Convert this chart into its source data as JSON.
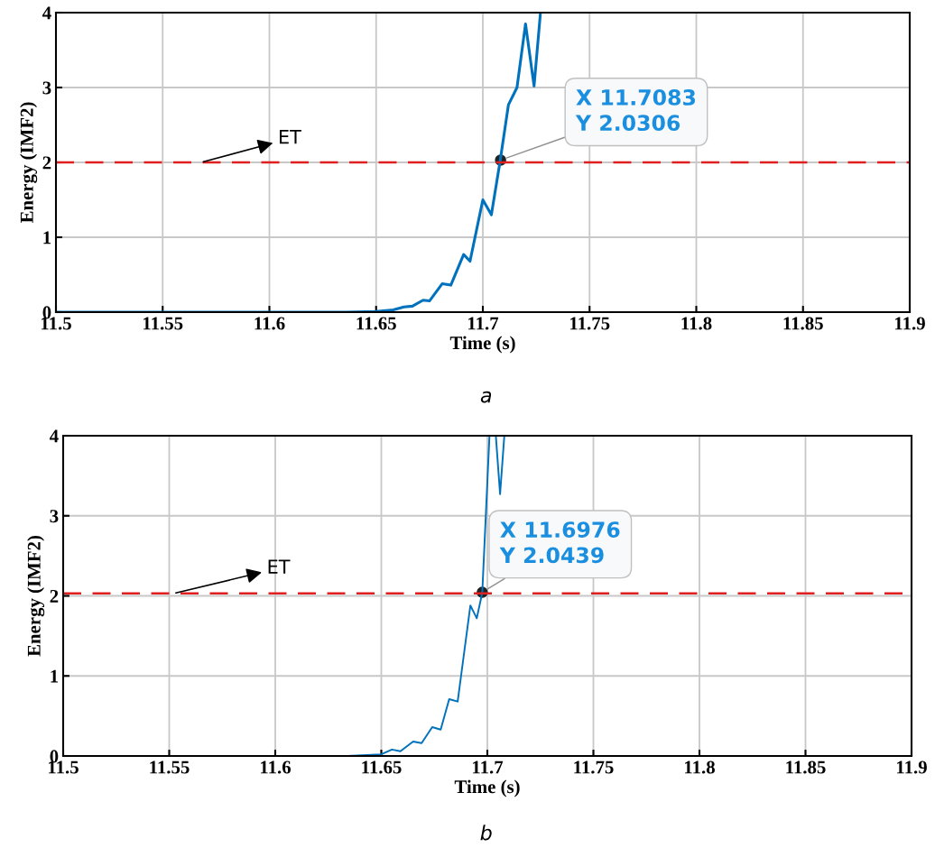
{
  "chart_data": [
    {
      "type": "line",
      "xlabel": "Time (s)",
      "ylabel": "Energy (IMF2)",
      "xlim": [
        11.5,
        11.9
      ],
      "ylim": [
        0,
        4
      ],
      "xticks": [
        11.5,
        11.55,
        11.6,
        11.65,
        11.7,
        11.75,
        11.8,
        11.85,
        11.9
      ],
      "yticks": [
        0,
        1,
        2,
        3,
        4
      ],
      "grid": true,
      "marker": "none",
      "line_style": "solid",
      "series": [
        {
          "color": "#0072bd",
          "x": [
            11.5,
            11.636,
            11.65,
            11.658,
            11.663,
            11.667,
            11.672,
            11.675,
            11.681,
            11.685,
            11.691,
            11.694,
            11.7,
            11.704,
            11.708,
            11.712,
            11.716,
            11.72,
            11.724,
            11.727
          ],
          "values": [
            0,
            0,
            0.01,
            0.03,
            0.07,
            0.08,
            0.16,
            0.15,
            0.38,
            0.36,
            0.77,
            0.68,
            1.5,
            1.3,
            2.0,
            2.77,
            3.0,
            3.85,
            3.02,
            4.0
          ]
        }
      ],
      "ref_lines": [
        {
          "axis": "y",
          "value": 2.0,
          "label": "ET",
          "color": "#e02020",
          "line_style": "dashed"
        }
      ],
      "annotations": [
        {
          "text": "X 11.7083\nY 2.0306",
          "x": 11.7083,
          "y": 2.0306
        },
        "a"
      ]
    },
    {
      "type": "line",
      "xlabel": "Time (s)",
      "ylabel": "Energy (IMF2)",
      "xlim": [
        11.5,
        11.9
      ],
      "ylim": [
        0,
        4
      ],
      "xticks": [
        11.5,
        11.55,
        11.6,
        11.65,
        11.7,
        11.75,
        11.8,
        11.85,
        11.9
      ],
      "yticks": [
        0,
        1,
        2,
        3,
        4
      ],
      "grid": true,
      "marker": "none",
      "line_style": "solid",
      "series": [
        {
          "color": "#0072bd",
          "x": [
            11.5,
            11.634,
            11.65,
            11.655,
            11.659,
            11.665,
            11.669,
            11.674,
            11.678,
            11.682,
            11.686,
            11.692,
            11.695,
            11.6976,
            11.701,
            11.7025,
            11.704,
            11.706,
            11.708
          ],
          "values": [
            0,
            0,
            0.02,
            0.08,
            0.06,
            0.18,
            0.16,
            0.36,
            0.33,
            0.71,
            0.68,
            1.88,
            1.72,
            2.04,
            4.0,
            null,
            4.0,
            3.27,
            4.0
          ]
        }
      ],
      "ref_lines": [
        {
          "axis": "y",
          "value": 2.03,
          "label": "ET",
          "color": "#e02020",
          "line_style": "dashed"
        }
      ],
      "annotations": [
        {
          "text": "X 11.6976\nY 2.0439",
          "x": 11.6976,
          "y": 2.0439
        },
        "b"
      ]
    }
  ]
}
